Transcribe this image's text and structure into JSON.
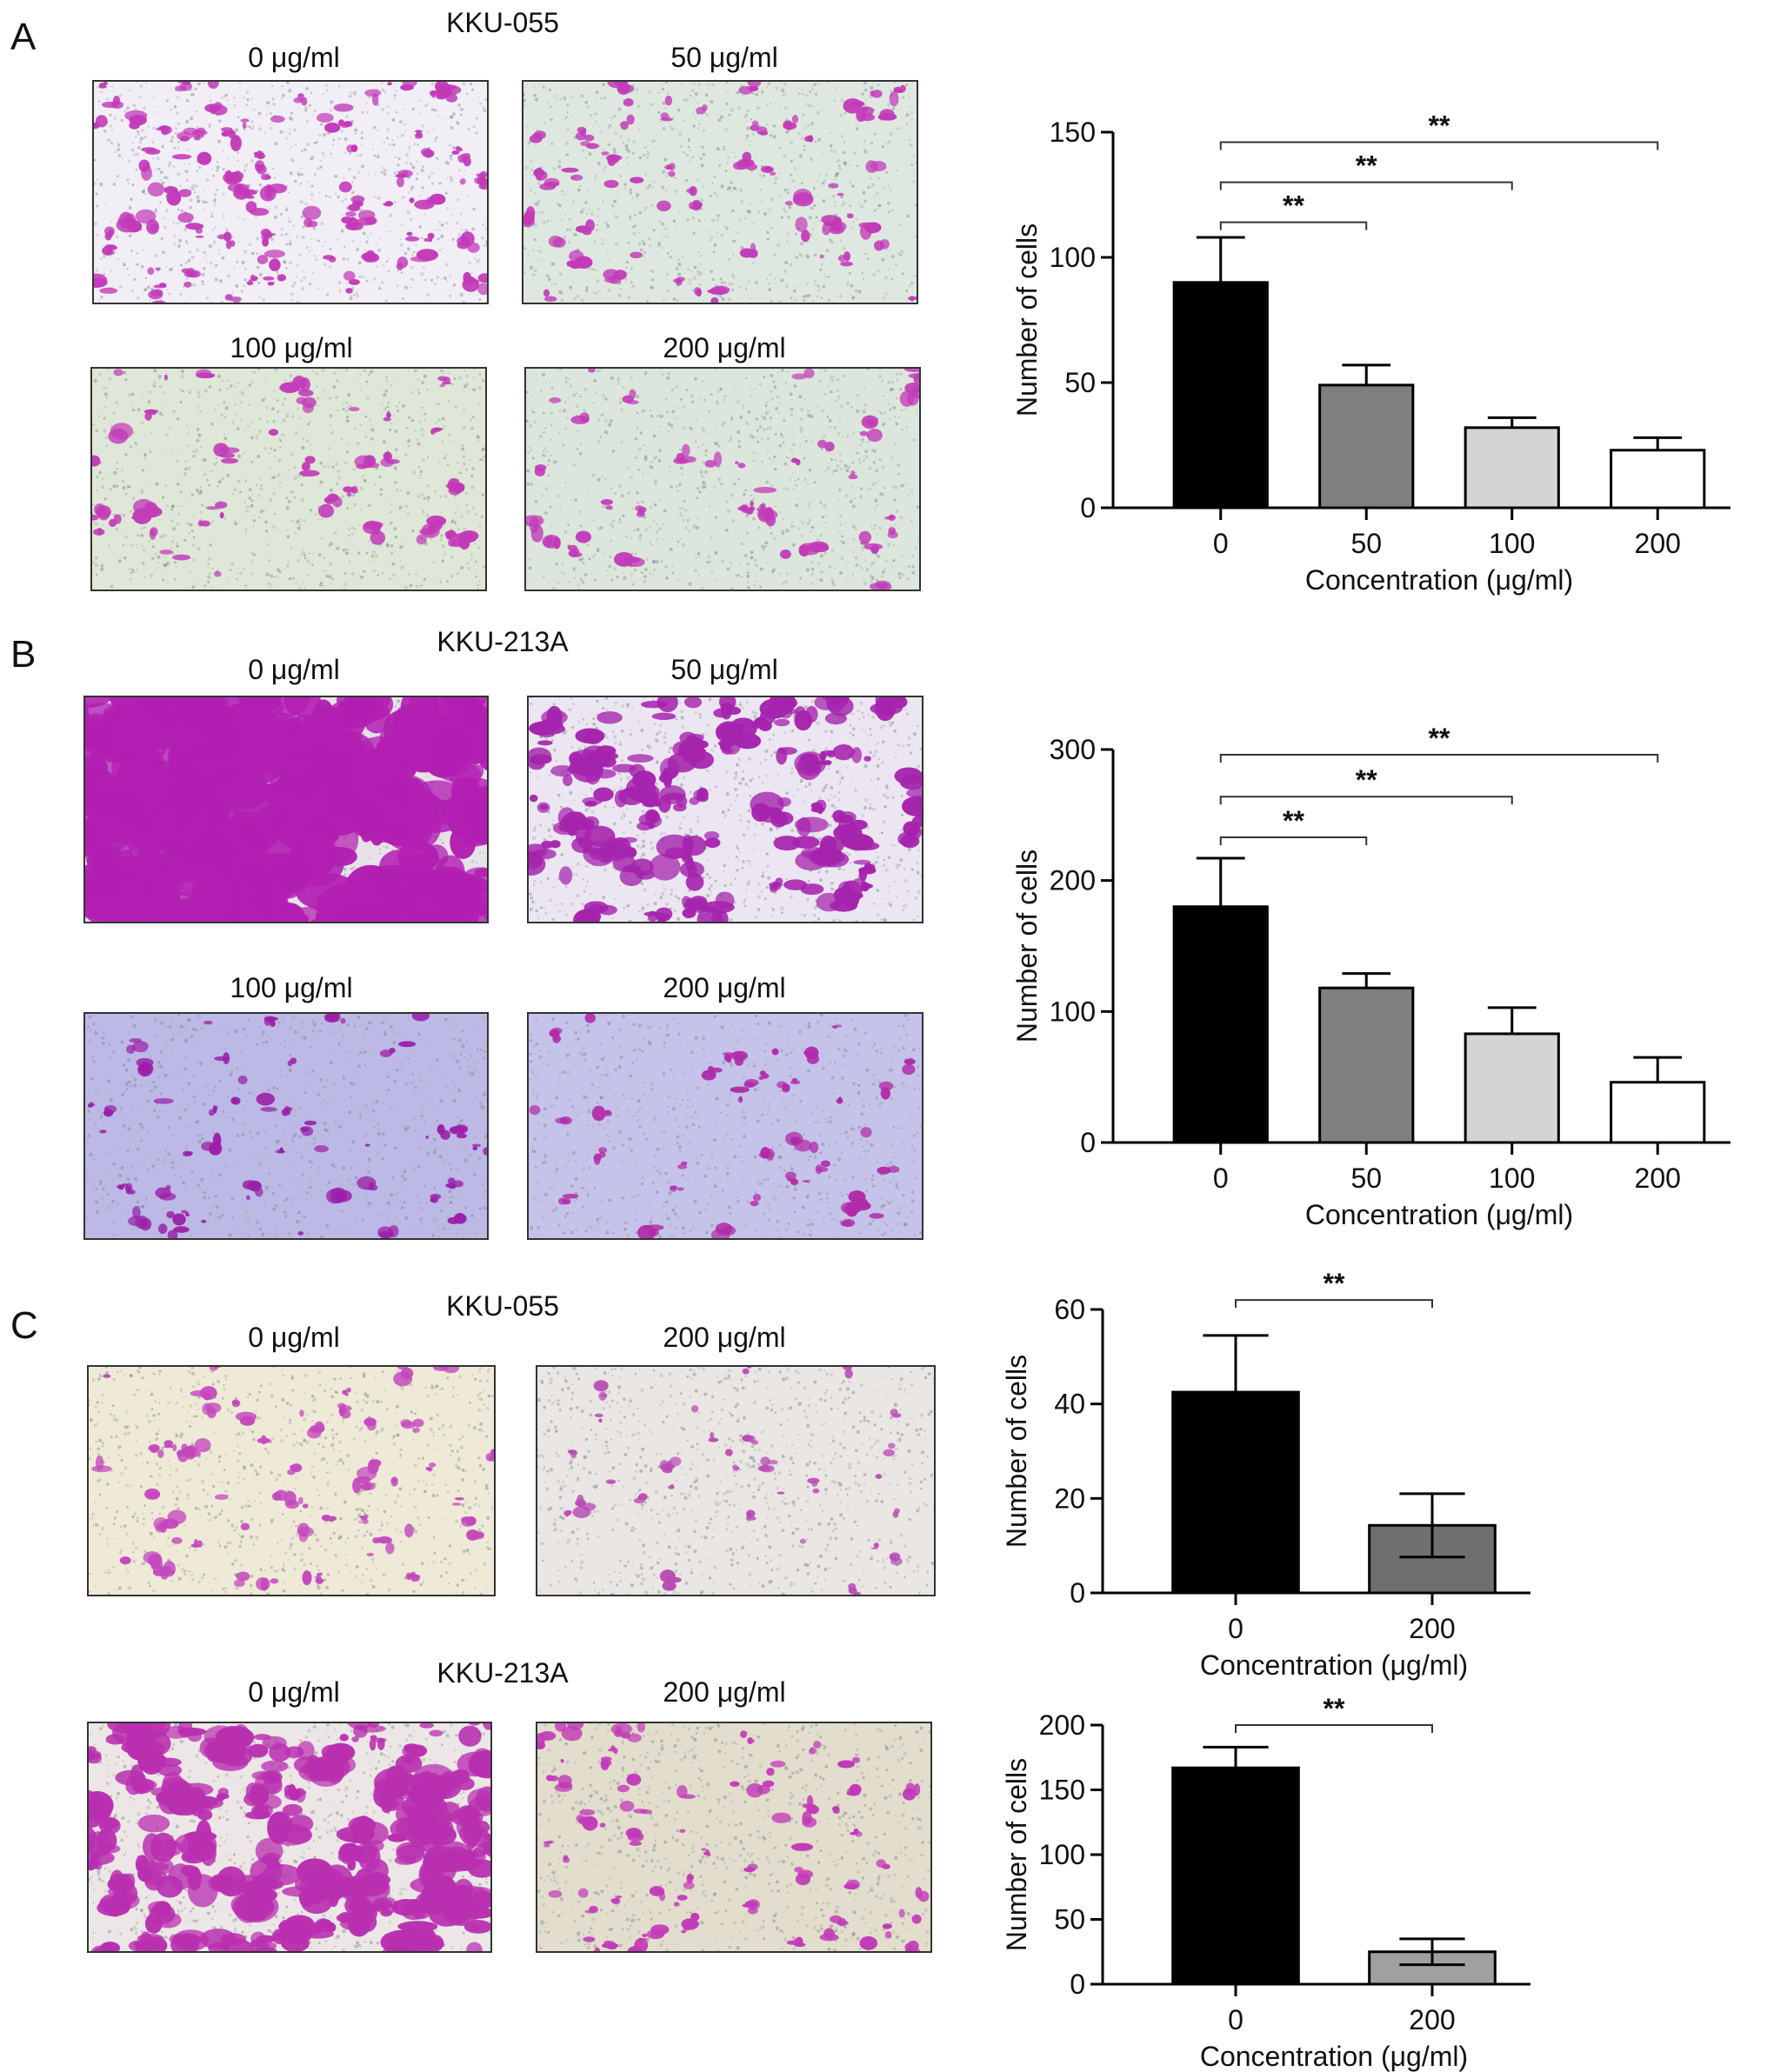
{
  "panels": [
    {
      "letter": "A",
      "cell_line": "KKU-055",
      "images": [
        {
          "label": "0 μg/ml",
          "bg": "#f1eef6",
          "dot_color": "#c23ab8",
          "density": 0.55,
          "blob_size": 1.0
        },
        {
          "label": "50 μg/ml",
          "bg": "#dfe8e0",
          "dot_color": "#c23ab8",
          "density": 0.28,
          "blob_size": 1.0
        },
        {
          "label": "100 μg/ml",
          "bg": "#dfe7d8",
          "dot_color": "#c23ab8",
          "density": 0.16,
          "blob_size": 1.0
        },
        {
          "label": "200 μg/ml",
          "bg": "#dde6dc",
          "dot_color": "#c23ab8",
          "density": 0.1,
          "blob_size": 1.0
        }
      ]
    },
    {
      "letter": "B",
      "cell_line": "KKU-213A",
      "images": [
        {
          "label": "0 μg/ml",
          "bg": "#e7e2ea",
          "dot_color": "#b21fb2",
          "density": 0.9,
          "blob_size": 3.2
        },
        {
          "label": "50 μg/ml",
          "bg": "#ebe6f1",
          "dot_color": "#a523ad",
          "density": 0.55,
          "blob_size": 1.5
        },
        {
          "label": "100 μg/ml",
          "bg": "#bcb9e6",
          "dot_color": "#9b1fa8",
          "density": 0.22,
          "blob_size": 0.9
        },
        {
          "label": "200 μg/ml",
          "bg": "#c5c3ea",
          "dot_color": "#b02aa8",
          "density": 0.14,
          "blob_size": 0.9
        }
      ]
    },
    {
      "letter": "C",
      "cell_line_top": "KKU-055",
      "cell_line_bottom": "KKU-213A",
      "images": [
        {
          "label": "0 μg/ml",
          "bg": "#efead8",
          "dot_color": "#c447bd",
          "density": 0.28,
          "blob_size": 0.9
        },
        {
          "label": "200 μg/ml",
          "bg": "#e9e6e4",
          "dot_color": "#b94ab5",
          "density": 0.08,
          "blob_size": 0.8
        },
        {
          "label": "0 μg/ml",
          "bg": "#ece6e6",
          "dot_color": "#b92fb0",
          "density": 0.7,
          "blob_size": 1.9
        },
        {
          "label": "200 μg/ml",
          "bg": "#e2ddcd",
          "dot_color": "#c23ab8",
          "density": 0.35,
          "blob_size": 0.9
        }
      ]
    }
  ],
  "chart_data": [
    {
      "type": "bar",
      "panel": "A",
      "categories": [
        "0",
        "50",
        "100",
        "200"
      ],
      "values": [
        90,
        49,
        32,
        23
      ],
      "errors": [
        18,
        8,
        4,
        5
      ],
      "bar_colors": [
        "#000000",
        "#7f7f7f",
        "#d4d4d4",
        "#ffffff"
      ],
      "xlabel": "Concentration (μg/ml)",
      "ylabel": "Number of cells",
      "ylim": [
        0,
        150
      ],
      "yticks": [
        0,
        50,
        100,
        150
      ],
      "significance": [
        {
          "from": 0,
          "to": 1,
          "label": "**",
          "y": 114
        },
        {
          "from": 0,
          "to": 2,
          "label": "**",
          "y": 130
        },
        {
          "from": 0,
          "to": 3,
          "label": "**",
          "y": 146
        }
      ]
    },
    {
      "type": "bar",
      "panel": "B",
      "categories": [
        "0",
        "50",
        "100",
        "200"
      ],
      "values": [
        180,
        118,
        83,
        46
      ],
      "errors": [
        37,
        11,
        20,
        19
      ],
      "bar_colors": [
        "#000000",
        "#7f7f7f",
        "#d4d4d4",
        "#ffffff"
      ],
      "xlabel": "Concentration (μg/ml)",
      "ylabel": "Number of cells",
      "ylim": [
        0,
        300
      ],
      "yticks": [
        0,
        100,
        200,
        300
      ],
      "significance": [
        {
          "from": 0,
          "to": 1,
          "label": "**",
          "y": 233
        },
        {
          "from": 0,
          "to": 2,
          "label": "**",
          "y": 264
        },
        {
          "from": 0,
          "to": 3,
          "label": "**",
          "y": 296
        }
      ]
    },
    {
      "type": "bar",
      "panel": "C-KKU-055",
      "categories": [
        "0",
        "200"
      ],
      "values": [
        42.5,
        14.3
      ],
      "errors": [
        12,
        6.7
      ],
      "error_both": [
        false,
        true
      ],
      "bar_colors": [
        "#000000",
        "#6f6f6f"
      ],
      "xlabel": "Concentration (μg/ml)",
      "ylabel": "Number of cells",
      "ylim": [
        0,
        60
      ],
      "yticks": [
        0,
        20,
        40,
        60
      ],
      "significance": [
        {
          "from": 0,
          "to": 1,
          "label": "**",
          "y": 62
        }
      ]
    },
    {
      "type": "bar",
      "panel": "C-KKU-213A",
      "categories": [
        "0",
        "200"
      ],
      "values": [
        167,
        25
      ],
      "errors": [
        16,
        10
      ],
      "error_both": [
        false,
        true
      ],
      "bar_colors": [
        "#000000",
        "#a0a0a0"
      ],
      "xlabel": "Concentration (μg/ml)",
      "ylabel": "Number of cells",
      "ylim": [
        0,
        200
      ],
      "yticks": [
        0,
        50,
        100,
        150,
        200
      ],
      "significance": [
        {
          "from": 0,
          "to": 1,
          "label": "**",
          "y": 200
        }
      ]
    }
  ]
}
